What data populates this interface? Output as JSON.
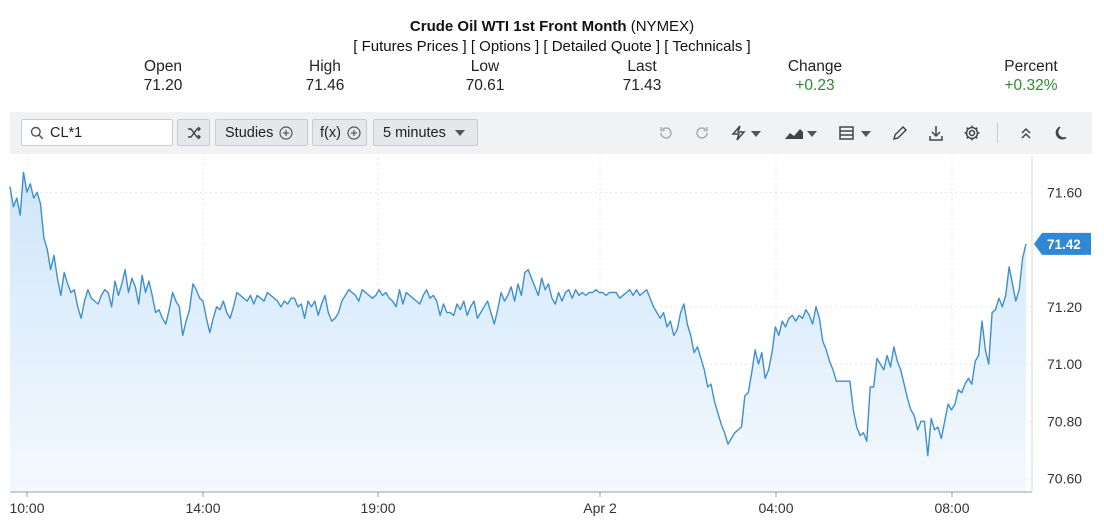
{
  "header": {
    "title_bold": "Crude Oil WTI 1st Front Month",
    "title_suffix": "(NYMEX)",
    "links_text": "[ Futures Prices ] [ Options ] [ Detailed Quote ] [ Technicals ]"
  },
  "quote": {
    "open_label": "Open",
    "open": "71.20",
    "high_label": "High",
    "high": "71.46",
    "low_label": "Low",
    "low": "70.61",
    "last_label": "Last",
    "last": "71.43",
    "change_label": "Change",
    "change": "+0.23",
    "percent_label": "Percent",
    "percent": "+0.32%"
  },
  "toolbar": {
    "symbol_value": "CL*1",
    "studies_label": "Studies",
    "fx_label": "f(x)",
    "interval_label": "5 minutes",
    "icons": [
      "search-icon",
      "swap-icon",
      "undo-icon",
      "redo-icon",
      "lightning-icon",
      "chart-type-icon",
      "layout-icon",
      "pencil-icon",
      "download-icon",
      "settings-icon",
      "collapse-icon",
      "dark-mode-icon"
    ]
  },
  "colors": {
    "line": "#3d8fd1",
    "fill_top": "#cfe6fa",
    "up": "#2e8b2e",
    "badge": "#2f87d6"
  },
  "chart_data": {
    "type": "area",
    "x_tick_labels": [
      "10:00",
      "14:00",
      "19:00",
      "Apr 2",
      "04:00",
      "08:00"
    ],
    "y_tick_labels": [
      "71.60",
      "71.20",
      "71.00",
      "70.80",
      "70.60"
    ],
    "ylim": [
      70.56,
      71.72
    ],
    "grid": true,
    "last_price_label": "71.42",
    "series": [
      {
        "values": [
          71.62,
          71.55,
          71.58,
          71.52,
          71.67,
          71.6,
          71.63,
          71.58,
          71.6,
          71.56,
          71.44,
          71.4,
          71.33,
          71.38,
          71.3,
          71.24,
          71.32,
          71.28,
          71.25,
          71.26,
          71.2,
          71.16,
          71.22,
          71.26,
          71.23,
          71.22,
          71.21,
          71.24,
          71.26,
          71.25,
          71.2,
          71.29,
          71.24,
          71.28,
          71.33,
          71.25,
          71.3,
          71.27,
          71.21,
          71.31,
          71.25,
          71.29,
          71.24,
          71.18,
          71.19,
          71.16,
          71.14,
          71.19,
          71.25,
          71.22,
          71.2,
          71.1,
          71.15,
          71.19,
          71.28,
          71.26,
          71.23,
          71.22,
          71.16,
          71.11,
          71.16,
          71.2,
          71.19,
          71.22,
          71.18,
          71.16,
          71.2,
          71.25,
          71.24,
          71.23,
          71.22,
          71.24,
          71.21,
          71.24,
          71.23,
          71.22,
          71.25,
          71.24,
          71.23,
          71.22,
          71.2,
          71.22,
          71.21,
          71.23,
          71.23,
          71.2,
          71.21,
          71.16,
          71.22,
          71.2,
          71.22,
          71.17,
          71.21,
          71.24,
          71.18,
          71.15,
          71.16,
          71.18,
          71.22,
          71.24,
          71.26,
          71.25,
          71.24,
          71.22,
          71.26,
          71.25,
          71.24,
          71.23,
          71.24,
          71.26,
          71.24,
          71.25,
          71.23,
          71.22,
          71.2,
          71.26,
          71.21,
          71.25,
          71.24,
          71.23,
          71.22,
          71.21,
          71.24,
          71.26,
          71.23,
          71.24,
          71.22,
          71.17,
          71.21,
          71.18,
          71.18,
          71.17,
          71.21,
          71.19,
          71.22,
          71.17,
          71.2,
          71.22,
          71.16,
          71.18,
          71.2,
          71.22,
          71.18,
          71.14,
          71.19,
          71.25,
          71.22,
          71.24,
          71.27,
          71.22,
          71.28,
          71.24,
          71.32,
          71.33,
          71.3,
          71.27,
          71.24,
          71.3,
          71.26,
          71.28,
          71.23,
          71.21,
          71.25,
          71.22,
          71.25,
          71.26,
          71.23,
          71.26,
          71.24,
          71.25,
          71.24,
          71.25,
          71.25,
          71.26,
          71.25,
          71.25,
          71.24,
          71.25,
          71.25,
          71.25,
          71.23,
          71.24,
          71.25,
          71.26,
          71.24,
          71.26,
          71.24,
          71.25,
          71.26,
          71.23,
          71.2,
          71.18,
          71.16,
          71.18,
          71.13,
          71.15,
          71.1,
          71.12,
          71.18,
          71.21,
          71.14,
          71.1,
          71.04,
          71.06,
          71.02,
          70.98,
          70.92,
          70.93,
          70.87,
          70.83,
          70.79,
          70.76,
          70.72,
          70.74,
          70.76,
          70.77,
          70.78,
          70.89,
          70.9,
          70.97,
          71.05,
          71.0,
          71.04,
          70.95,
          70.98,
          71.04,
          71.13,
          71.1,
          71.15,
          71.13,
          71.16,
          71.17,
          71.15,
          71.17,
          71.16,
          71.19,
          71.17,
          71.14,
          71.2,
          71.16,
          71.08,
          71.05,
          71.01,
          70.98,
          70.94,
          70.94,
          70.94,
          70.94,
          70.94,
          70.84,
          70.78,
          70.75,
          70.76,
          70.73,
          70.92,
          70.92,
          71.02,
          71.0,
          70.98,
          71.03,
          70.99,
          71.06,
          71.01,
          70.98,
          70.93,
          70.88,
          70.84,
          70.82,
          70.77,
          70.8,
          70.8,
          70.68,
          70.81,
          70.77,
          70.78,
          70.74,
          70.8,
          70.86,
          70.84,
          70.86,
          70.91,
          70.9,
          70.93,
          70.95,
          70.93,
          71.01,
          71.03,
          71.15,
          71.05,
          71.0,
          71.18,
          71.19,
          71.23,
          71.2,
          71.24,
          71.34,
          71.28,
          71.22,
          71.26,
          71.37,
          71.42
        ]
      }
    ]
  }
}
